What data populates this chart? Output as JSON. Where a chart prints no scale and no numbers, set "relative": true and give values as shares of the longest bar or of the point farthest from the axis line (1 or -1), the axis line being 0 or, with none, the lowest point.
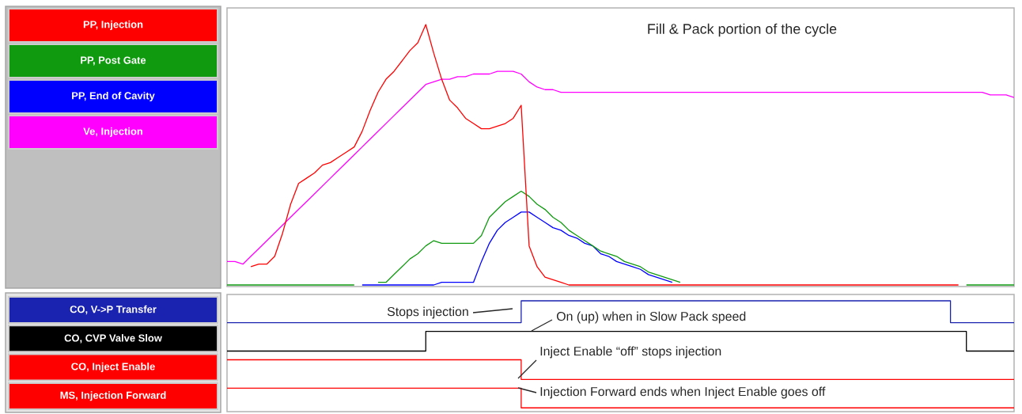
{
  "chart_data": [
    {
      "type": "line",
      "title": "Fill & Pack portion of the cycle",
      "relative": true,
      "legend": "left",
      "categories": [
        null,
        null,
        null,
        null,
        null,
        null,
        null,
        null,
        null,
        null,
        null,
        null,
        null,
        null,
        null,
        null,
        null,
        null,
        null,
        null,
        null,
        null,
        null,
        null,
        null,
        null,
        null,
        null,
        null,
        null,
        null,
        null,
        null,
        null,
        null,
        null,
        null,
        null,
        null,
        null,
        null,
        null,
        null,
        null,
        null,
        null,
        null,
        null,
        null,
        null,
        null,
        null,
        null,
        null,
        null,
        null,
        null,
        null,
        null,
        null,
        null,
        null,
        null,
        null,
        null,
        null,
        null,
        null,
        null,
        null,
        null,
        null,
        null,
        null,
        null,
        null,
        null,
        null,
        null,
        null,
        null,
        null,
        null,
        null,
        null,
        null,
        null,
        null,
        null,
        null,
        null,
        null,
        null,
        null,
        null,
        null,
        null,
        null,
        null,
        null
      ],
      "series": [
        {
          "name": "PP, Injection",
          "color": "#ff0000",
          "values": [
            null,
            null,
            null,
            0.07,
            0.08,
            0.08,
            0.11,
            0.2,
            0.31,
            0.39,
            0.41,
            0.43,
            0.46,
            0.47,
            0.49,
            0.51,
            0.53,
            0.59,
            0.67,
            0.74,
            0.79,
            0.82,
            0.86,
            0.9,
            0.93,
            1.0,
            0.89,
            0.79,
            0.71,
            0.68,
            0.64,
            0.62,
            0.6,
            0.6,
            0.61,
            0.62,
            0.64,
            0.69,
            0.15,
            0.07,
            0.03,
            0.02,
            0.01,
            0,
            0,
            0,
            0,
            0,
            0,
            0,
            0,
            0,
            0,
            0,
            0,
            0,
            0,
            0,
            0,
            0,
            0,
            0,
            0,
            0,
            0,
            0,
            0,
            0,
            0,
            0,
            0,
            0,
            0,
            0,
            0,
            0,
            0,
            0,
            0,
            0,
            0,
            0,
            0,
            0,
            0,
            0,
            0,
            0,
            0,
            0,
            0,
            0,
            0,
            null,
            null,
            null,
            null,
            null,
            null,
            null
          ]
        },
        {
          "name": "PP, Post Gate",
          "color": "#109a10",
          "values": [
            0,
            0,
            0,
            0,
            0,
            0,
            0,
            0,
            0,
            0,
            0,
            0,
            0,
            0,
            0,
            0,
            0,
            null,
            null,
            0.01,
            0.01,
            0.04,
            0.07,
            0.1,
            0.12,
            0.15,
            0.17,
            0.16,
            0.16,
            0.16,
            0.16,
            0.16,
            0.19,
            0.26,
            0.29,
            0.32,
            0.34,
            0.36,
            0.34,
            0.31,
            0.29,
            0.26,
            0.24,
            0.21,
            0.19,
            0.17,
            0.15,
            0.13,
            0.12,
            0.11,
            0.09,
            0.08,
            0.07,
            0.05,
            0.04,
            0.03,
            0.02,
            0.01,
            null,
            null,
            null,
            null,
            null,
            null,
            null,
            null,
            null,
            null,
            null,
            null,
            null,
            null,
            null,
            null,
            null,
            null,
            null,
            null,
            null,
            null,
            null,
            null,
            null,
            null,
            null,
            null,
            null,
            null,
            null,
            null,
            null,
            null,
            null,
            0,
            0,
            0,
            0,
            0,
            0,
            0
          ]
        },
        {
          "name": "PP, End of Cavity",
          "color": "#0000ff",
          "values": [
            null,
            null,
            null,
            null,
            null,
            null,
            null,
            null,
            null,
            null,
            null,
            null,
            null,
            null,
            null,
            null,
            null,
            0,
            0,
            0,
            0,
            0,
            0,
            0,
            0,
            0,
            0,
            0.01,
            0.01,
            0.01,
            0.01,
            0.01,
            0.09,
            0.16,
            0.21,
            0.24,
            0.26,
            0.28,
            0.28,
            0.26,
            0.24,
            0.22,
            0.21,
            0.19,
            0.18,
            0.16,
            0.15,
            0.12,
            0.11,
            0.09,
            0.08,
            0.07,
            0.06,
            0.04,
            0.03,
            0.02,
            0.01,
            null,
            null,
            null,
            null,
            null,
            null,
            null,
            null,
            null,
            null,
            null,
            null,
            null,
            null,
            null,
            null,
            null,
            null,
            null,
            null,
            null,
            null,
            null,
            null,
            null,
            null,
            null,
            null,
            null,
            null,
            null,
            null,
            null,
            null,
            null,
            null,
            null,
            null,
            null,
            null,
            null,
            null,
            null
          ]
        },
        {
          "name": "Ve, Injection",
          "color": "#ff00ff",
          "values": [
            0.09,
            0.09,
            0.08,
            0.11,
            0.14,
            0.17,
            0.2,
            0.23,
            0.26,
            0.29,
            0.32,
            0.35,
            0.38,
            0.41,
            0.44,
            0.47,
            0.5,
            0.53,
            0.56,
            0.59,
            0.62,
            0.65,
            0.68,
            0.71,
            0.74,
            0.77,
            0.78,
            0.79,
            0.79,
            0.8,
            0.8,
            0.81,
            0.81,
            0.81,
            0.82,
            0.82,
            0.82,
            0.81,
            0.78,
            0.76,
            0.75,
            0.75,
            0.74,
            0.74,
            0.74,
            0.74,
            0.74,
            0.74,
            0.74,
            0.74,
            0.74,
            0.74,
            0.74,
            0.74,
            0.74,
            0.74,
            0.74,
            0.74,
            0.74,
            0.74,
            0.74,
            0.74,
            0.74,
            0.74,
            0.74,
            0.74,
            0.74,
            0.74,
            0.74,
            0.74,
            0.74,
            0.74,
            0.74,
            0.74,
            0.74,
            0.74,
            0.74,
            0.74,
            0.74,
            0.74,
            0.74,
            0.74,
            0.74,
            0.74,
            0.74,
            0.74,
            0.74,
            0.74,
            0.74,
            0.74,
            0.74,
            0.74,
            0.74,
            0.74,
            0.74,
            0.74,
            0.73,
            0.73,
            0.73,
            0.72
          ]
        }
      ]
    },
    {
      "type": "step",
      "relative": true,
      "legend": "left",
      "categories": [
        null,
        null,
        null,
        null,
        null,
        null,
        null,
        null,
        null,
        null,
        null,
        null,
        null,
        null,
        null,
        null,
        null,
        null,
        null,
        null,
        null,
        null,
        null,
        null,
        null,
        null,
        null,
        null,
        null,
        null,
        null,
        null,
        null,
        null,
        null,
        null,
        null,
        null,
        null,
        null,
        null,
        null,
        null,
        null,
        null,
        null,
        null,
        null,
        null,
        null,
        null,
        null,
        null,
        null,
        null,
        null,
        null,
        null,
        null,
        null,
        null,
        null,
        null,
        null,
        null,
        null,
        null,
        null,
        null,
        null,
        null,
        null,
        null,
        null,
        null,
        null,
        null,
        null,
        null,
        null,
        null,
        null,
        null,
        null,
        null,
        null,
        null,
        null,
        null,
        null,
        null,
        null,
        null,
        null,
        null,
        null,
        null,
        null,
        null,
        null
      ],
      "series": [
        {
          "name": "CO, V->P Transfer",
          "color": "#1a22b0",
          "values": [
            0.8,
            0.8,
            0.8,
            0.8,
            0.8,
            0.8,
            0.8,
            0.8,
            0.8,
            0.8,
            0.8,
            0.8,
            0.8,
            0.8,
            0.8,
            0.8,
            0.8,
            0.8,
            0.8,
            0.8,
            0.8,
            0.8,
            0.8,
            0.8,
            0.8,
            0.8,
            0.8,
            0.8,
            0.8,
            0.8,
            0.8,
            0.8,
            0.8,
            0.8,
            0.8,
            0.8,
            0.8,
            1,
            1,
            1,
            1,
            1,
            1,
            1,
            1,
            1,
            1,
            1,
            1,
            1,
            1,
            1,
            1,
            1,
            1,
            1,
            1,
            1,
            1,
            1,
            1,
            1,
            1,
            1,
            1,
            1,
            1,
            1,
            1,
            1,
            1,
            1,
            1,
            1,
            1,
            1,
            1,
            1,
            1,
            1,
            1,
            1,
            1,
            1,
            1,
            1,
            1,
            1,
            1,
            1,
            1,
            0.8,
            0.8,
            0.8,
            0.8,
            0.8,
            0.8,
            0.8,
            0.8,
            0.8
          ]
        },
        {
          "name": "CO, CVP Valve Slow",
          "color": "#000000",
          "values": [
            0.54,
            0.54,
            0.54,
            0.54,
            0.54,
            0.54,
            0.54,
            0.54,
            0.54,
            0.54,
            0.54,
            0.54,
            0.54,
            0.54,
            0.54,
            0.54,
            0.54,
            0.54,
            0.54,
            0.54,
            0.54,
            0.54,
            0.54,
            0.54,
            0.54,
            0.72,
            0.72,
            0.72,
            0.72,
            0.72,
            0.72,
            0.72,
            0.72,
            0.72,
            0.72,
            0.72,
            0.72,
            0.72,
            0.72,
            0.72,
            0.72,
            0.72,
            0.72,
            0.72,
            0.72,
            0.72,
            0.72,
            0.72,
            0.72,
            0.72,
            0.72,
            0.72,
            0.72,
            0.72,
            0.72,
            0.72,
            0.72,
            0.72,
            0.72,
            0.72,
            0.72,
            0.72,
            0.72,
            0.72,
            0.72,
            0.72,
            0.72,
            0.72,
            0.72,
            0.72,
            0.72,
            0.72,
            0.72,
            0.72,
            0.72,
            0.72,
            0.72,
            0.72,
            0.72,
            0.72,
            0.72,
            0.72,
            0.72,
            0.72,
            0.72,
            0.72,
            0.72,
            0.72,
            0.72,
            0.72,
            0.72,
            0.72,
            0.72,
            0.54,
            0.54,
            0.54,
            0.54,
            0.54,
            0.54,
            0.54
          ]
        },
        {
          "name": "CO, Inject Enable",
          "color": "#ff0000",
          "values": [
            0.46,
            0.46,
            0.46,
            0.46,
            0.46,
            0.46,
            0.46,
            0.46,
            0.46,
            0.46,
            0.46,
            0.46,
            0.46,
            0.46,
            0.46,
            0.46,
            0.46,
            0.46,
            0.46,
            0.46,
            0.46,
            0.46,
            0.46,
            0.46,
            0.46,
            0.46,
            0.46,
            0.46,
            0.46,
            0.46,
            0.46,
            0.46,
            0.46,
            0.46,
            0.46,
            0.46,
            0.46,
            0.28,
            0.28,
            0.28,
            0.28,
            0.28,
            0.28,
            0.28,
            0.28,
            0.28,
            0.28,
            0.28,
            0.28,
            0.28,
            0.28,
            0.28,
            0.28,
            0.28,
            0.28,
            0.28,
            0.28,
            0.28,
            0.28,
            0.28,
            0.28,
            0.28,
            0.28,
            0.28,
            0.28,
            0.28,
            0.28,
            0.28,
            0.28,
            0.28,
            0.28,
            0.28,
            0.28,
            0.28,
            0.28,
            0.28,
            0.28,
            0.28,
            0.28,
            0.28,
            0.28,
            0.28,
            0.28,
            0.28,
            0.28,
            0.28,
            0.28,
            0.28,
            0.28,
            0.28,
            0.28,
            0.28,
            0.28,
            0.28,
            0.28,
            0.28,
            0.28,
            0.28,
            0.28,
            0.28
          ]
        },
        {
          "name": "MS, Injection Forward",
          "color": "#ff0000",
          "values": [
            0.2,
            0.2,
            0.2,
            0.2,
            0.2,
            0.2,
            0.2,
            0.2,
            0.2,
            0.2,
            0.2,
            0.2,
            0.2,
            0.2,
            0.2,
            0.2,
            0.2,
            0.2,
            0.2,
            0.2,
            0.2,
            0.2,
            0.2,
            0.2,
            0.2,
            0.2,
            0.2,
            0.2,
            0.2,
            0.2,
            0.2,
            0.2,
            0.2,
            0.2,
            0.2,
            0.2,
            0.2,
            0.02,
            0.02,
            0.02,
            0.02,
            0.02,
            0.02,
            0.02,
            0.02,
            0.02,
            0.02,
            0.02,
            0.02,
            0.02,
            0.02,
            0.02,
            0.02,
            0.02,
            0.02,
            0.02,
            0.02,
            0.02,
            0.02,
            0.02,
            0.02,
            0.02,
            0.02,
            0.02,
            0.02,
            0.02,
            0.02,
            0.02,
            0.02,
            0.02,
            0.02,
            0.02,
            0.02,
            0.02,
            0.02,
            0.02,
            0.02,
            0.02,
            0.02,
            0.02,
            0.02,
            0.02,
            0.02,
            0.02,
            0.02,
            0.02,
            0.02,
            0.02,
            0.02,
            0.02,
            0.02,
            0.02,
            0.02,
            0.02,
            0.02,
            0.02,
            0.02,
            0.02,
            0.02,
            0.02
          ]
        }
      ],
      "annotations": [
        "Stops injection",
        "On (up) when in Slow Pack speed",
        "Inject Enable “off” stops injection",
        "Injection Forward ends when Inject Enable goes off"
      ]
    }
  ]
}
